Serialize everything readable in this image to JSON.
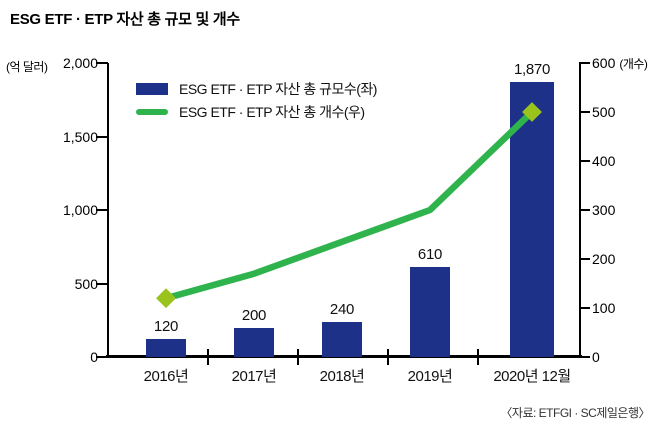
{
  "title": "ESG ETF · ETP 자산 총 규모 및 개수",
  "source": "〈자료: ETFGI · SC제일은행〉",
  "colors": {
    "bar": "#1e3189",
    "line": "#2fb34c",
    "marker": "#9ac31e",
    "axis": "#000000"
  },
  "legend": [
    {
      "label": "ESG ETF · ETP 자산 총 규모수(좌)",
      "type": "bar"
    },
    {
      "label": "ESG ETF · ETP 자산 총 개수(우)",
      "type": "line"
    }
  ],
  "left_axis": {
    "unit": "(억 달러)",
    "ticks": [
      2000,
      1500,
      1000,
      500,
      0
    ],
    "tick_labels": [
      "2,000",
      "1,500",
      "1,000",
      "500",
      "0"
    ],
    "range": [
      0,
      2000
    ]
  },
  "right_axis": {
    "unit": "(개수)",
    "ticks": [
      600,
      500,
      400,
      300,
      200,
      100,
      0
    ],
    "range": [
      0,
      600
    ]
  },
  "chart_data": {
    "type": "bar",
    "categories": [
      "2016년",
      "2017년",
      "2018년",
      "2019년",
      "2020년 12월"
    ],
    "series": [
      {
        "name": "ESG ETF · ETP 자산 총 규모수(좌)",
        "type": "bar",
        "axis": "left",
        "values": [
          120,
          200,
          240,
          610,
          1870
        ],
        "value_labels": [
          "120",
          "200",
          "240",
          "610",
          "1,870"
        ]
      },
      {
        "name": "ESG ETF · ETP 자산 총 개수(우)",
        "type": "line",
        "axis": "right",
        "values": [
          120,
          170,
          235,
          300,
          500
        ],
        "markers_at": [
          0,
          4
        ]
      }
    ],
    "title": "ESG ETF · ETP 자산 총 규모 및 개수",
    "xlabel": "",
    "ylabel_left": "(억 달러)",
    "ylabel_right": "(개수)",
    "ylim_left": [
      0,
      2000
    ],
    "ylim_right": [
      0,
      600
    ],
    "grid": false,
    "legend_position": "top-left-inside"
  }
}
